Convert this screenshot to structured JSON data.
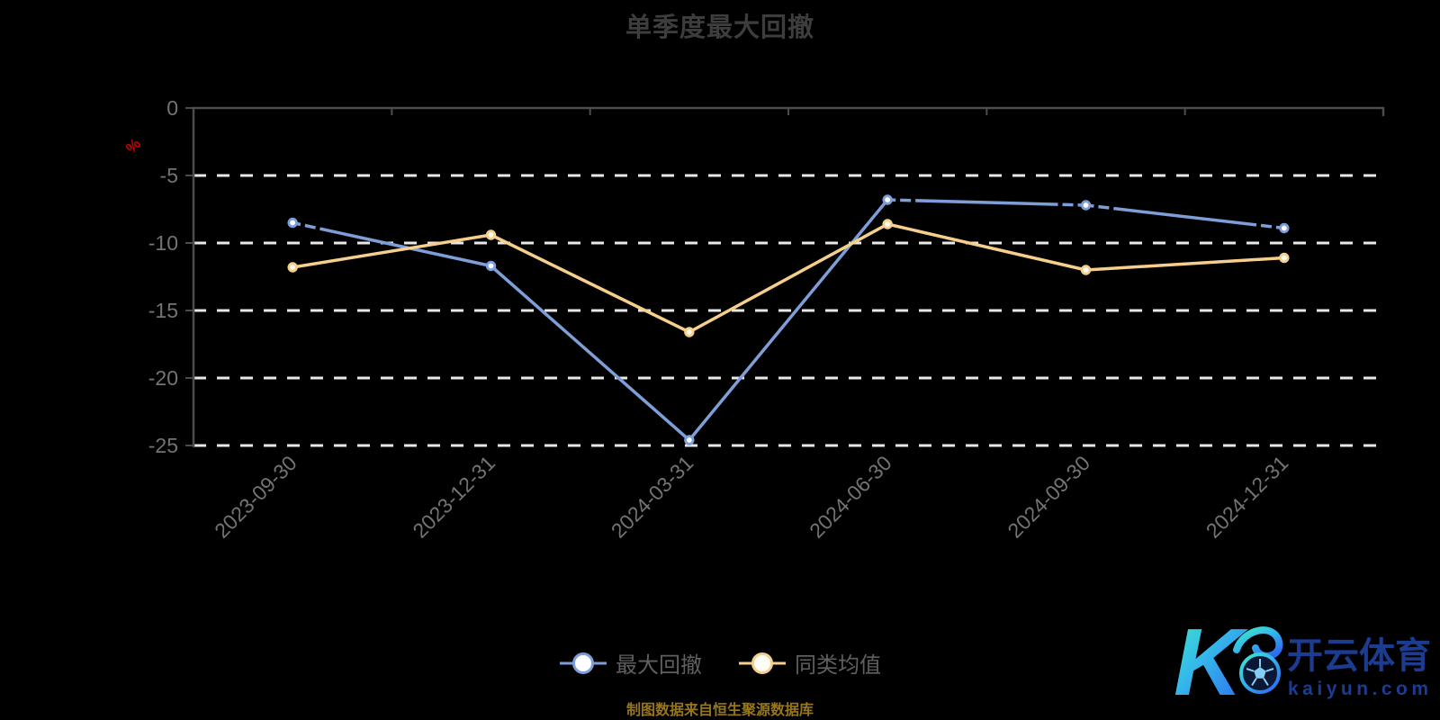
{
  "title": "单季度最大回撤",
  "y_axis_unit": "%",
  "footer": "制图数据来自恒生聚源数据库",
  "colors": {
    "background": "#000000",
    "title_text": "#3d3d3d",
    "axis_line": "#4c4c4c",
    "grid_line": "#e8e8e8",
    "tick_label": "#737373",
    "unit_label": "#c40000",
    "legend_text": "#5f5f5f",
    "footer_text": "#96761c",
    "series_drawdown": "#7e9ed8",
    "series_average": "#f6cf8d",
    "watermark_text": "#1b3c90",
    "watermark_gradient_start": "#3fe9c9",
    "watermark_gradient_end": "#2e6bf0"
  },
  "legend": {
    "items": [
      {
        "label": "最大回撤",
        "color": "#7e9ed8"
      },
      {
        "label": "同类均值",
        "color": "#f6cf8d"
      }
    ]
  },
  "watermark": {
    "monogram": "K",
    "brand": "开云体育",
    "domain": "kaiyun.com"
  },
  "chart_data": {
    "type": "line",
    "title": "单季度最大回撤",
    "categories": [
      "2023-09-30",
      "2023-12-31",
      "2024-03-31",
      "2024-06-30",
      "2024-09-30",
      "2024-12-31"
    ],
    "series": [
      {
        "name": "最大回撤",
        "color": "#7e9ed8",
        "values": [
          -8.5,
          -11.7,
          -24.6,
          -6.8,
          -7.2,
          -8.9
        ]
      },
      {
        "name": "同类均值",
        "color": "#f6cf8d",
        "values": [
          -11.8,
          -9.4,
          -16.6,
          -8.6,
          -12.0,
          -11.1
        ]
      }
    ],
    "xlabel": "",
    "ylabel": "%",
    "ylim": [
      -27,
      0
    ],
    "yticks": [
      0,
      -5,
      -10,
      -15,
      -20,
      -25
    ],
    "grid": "horizontal-dashed",
    "x_axis_position": "top",
    "legend_position": "bottom"
  }
}
